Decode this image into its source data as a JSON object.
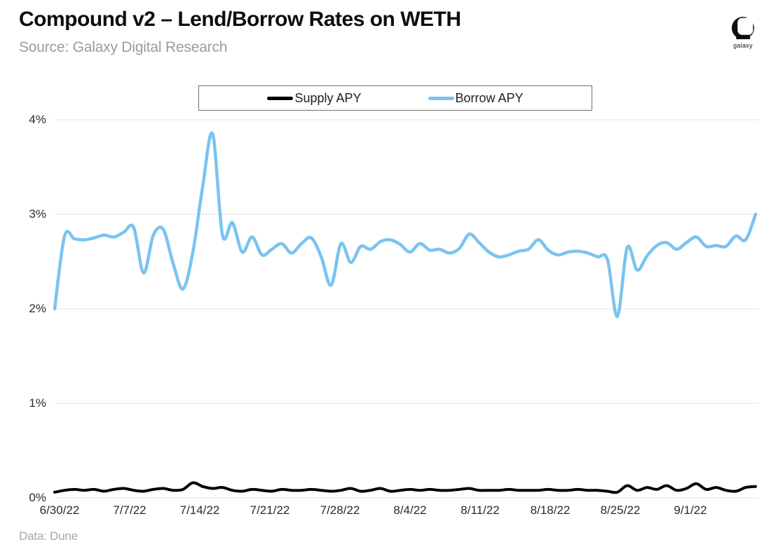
{
  "header": {
    "title": "Compound v2 – Lend/Borrow Rates on WETH",
    "source": "Source: Galaxy Digital Research",
    "logo_text": "galaxy"
  },
  "footer": {
    "credit": "Data: Dune"
  },
  "chart_data": {
    "type": "line",
    "title": "Compound v2 – Lend/Borrow Rates on WETH",
    "source": "Source: Galaxy Digital Research",
    "data_credit": "Data: Dune",
    "x_unit": "date, daily samples",
    "x_start": "6/30/22",
    "x_end": "9/8/22",
    "x_tick_labels": [
      "6/30/22",
      "7/7/22",
      "7/14/22",
      "7/21/22",
      "7/28/22",
      "8/4/22",
      "8/11/22",
      "8/18/22",
      "8/25/22",
      "9/1/22"
    ],
    "y_ticks": [
      {
        "value": 0,
        "label": "0%"
      },
      {
        "value": 1,
        "label": "1%"
      },
      {
        "value": 2,
        "label": "2%"
      },
      {
        "value": 3,
        "label": "3%"
      },
      {
        "value": 4,
        "label": "4%"
      }
    ],
    "ylim": [
      0,
      4
    ],
    "grid": "horizontal gridlines only",
    "legend_position": "top-center boxed",
    "gridline_color": "#e8e8e8",
    "series": [
      {
        "name": "Supply APY",
        "color": "#000000",
        "stroke_width": 4,
        "values": [
          0.06,
          0.08,
          0.09,
          0.08,
          0.09,
          0.07,
          0.09,
          0.1,
          0.08,
          0.07,
          0.09,
          0.1,
          0.08,
          0.09,
          0.16,
          0.12,
          0.1,
          0.11,
          0.08,
          0.07,
          0.09,
          0.08,
          0.07,
          0.09,
          0.08,
          0.08,
          0.09,
          0.08,
          0.07,
          0.08,
          0.1,
          0.07,
          0.08,
          0.1,
          0.07,
          0.08,
          0.09,
          0.08,
          0.09,
          0.08,
          0.08,
          0.09,
          0.1,
          0.08,
          0.08,
          0.08,
          0.09,
          0.08,
          0.08,
          0.08,
          0.09,
          0.08,
          0.08,
          0.09,
          0.08,
          0.08,
          0.07,
          0.06,
          0.13,
          0.08,
          0.11,
          0.09,
          0.13,
          0.08,
          0.1,
          0.15,
          0.09,
          0.11,
          0.08,
          0.07,
          0.11,
          0.12
        ]
      },
      {
        "name": "Borrow APY",
        "color": "#7AC3F0",
        "stroke_width": 4.5,
        "values": [
          2.0,
          2.77,
          2.74,
          2.73,
          2.75,
          2.78,
          2.76,
          2.81,
          2.86,
          2.38,
          2.78,
          2.84,
          2.48,
          2.21,
          2.6,
          3.3,
          3.85,
          2.78,
          2.91,
          2.6,
          2.76,
          2.57,
          2.63,
          2.69,
          2.59,
          2.69,
          2.75,
          2.55,
          2.25,
          2.69,
          2.49,
          2.66,
          2.63,
          2.71,
          2.73,
          2.68,
          2.6,
          2.69,
          2.62,
          2.63,
          2.59,
          2.64,
          2.79,
          2.7,
          2.6,
          2.55,
          2.57,
          2.61,
          2.63,
          2.73,
          2.62,
          2.57,
          2.6,
          2.61,
          2.59,
          2.55,
          2.52,
          1.92,
          2.65,
          2.41,
          2.56,
          2.67,
          2.7,
          2.63,
          2.7,
          2.76,
          2.66,
          2.67,
          2.66,
          2.77,
          2.73,
          3.0
        ]
      }
    ]
  }
}
